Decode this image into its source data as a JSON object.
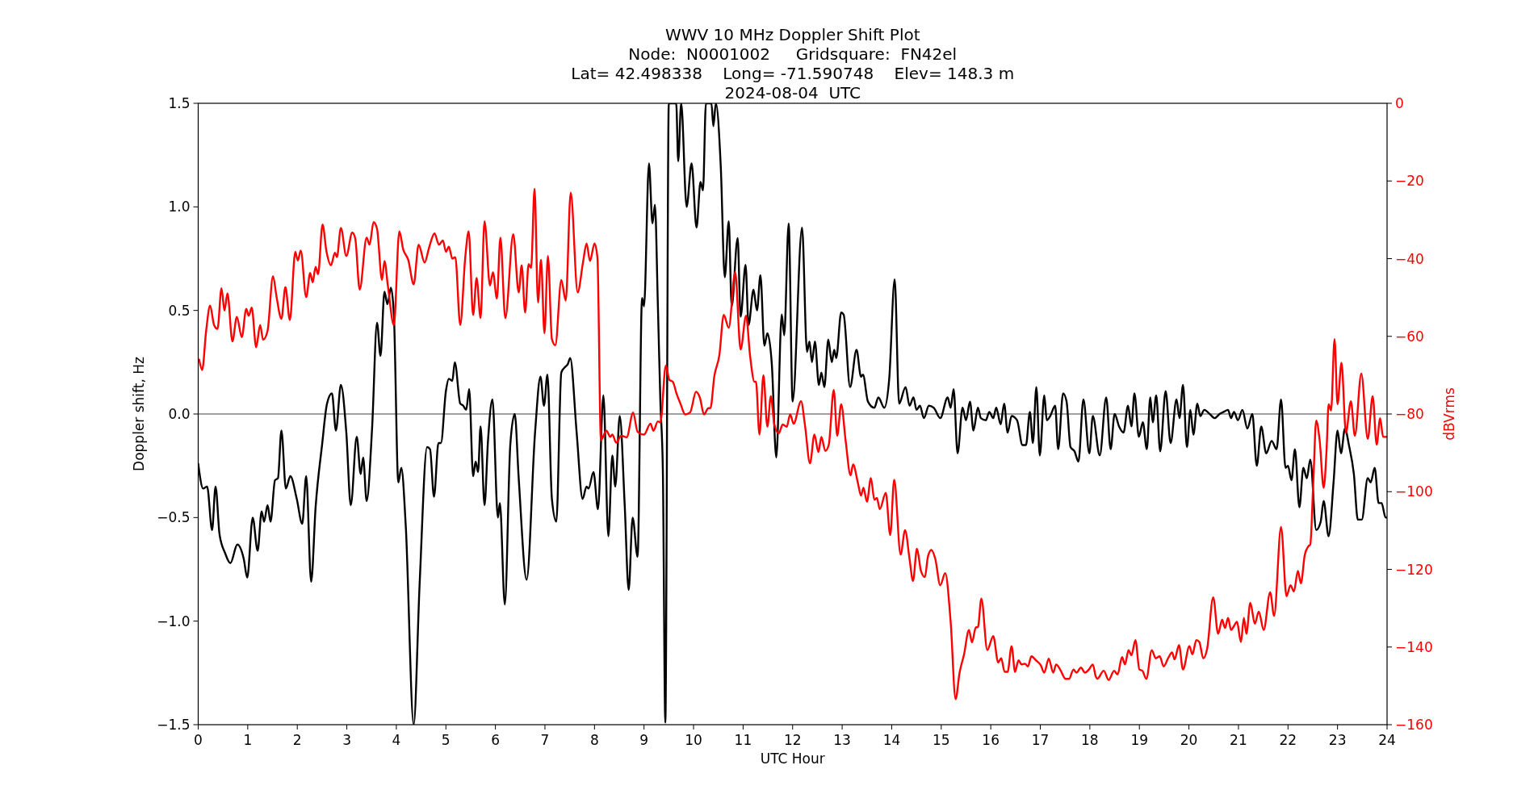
{
  "chart_data": {
    "type": "line",
    "title": "WWV 10 MHz Doppler Shift Plot",
    "subtitle": "Node:  N0001002     Gridsquare:  FN42el\nLat= 42.498338    Long= -71.590748    Elev= 148.3 m\n2024-08-04  UTC",
    "xlabel": "UTC Hour",
    "ylabel": "Doppler shift, Hz",
    "y2label": "dBVrms",
    "xlim": [
      0,
      24
    ],
    "xticks": [
      0,
      1,
      2,
      3,
      4,
      5,
      6,
      7,
      8,
      9,
      10,
      11,
      12,
      13,
      14,
      15,
      16,
      17,
      18,
      19,
      20,
      21,
      22,
      23,
      24
    ],
    "ylim": [
      -1.5,
      1.5
    ],
    "yticks": [
      {
        "value": -1.5,
        "label": "−1.5"
      },
      {
        "value": -1,
        "label": "−1.0"
      },
      {
        "value": -0.5,
        "label": "−0.5"
      },
      {
        "value": 0,
        "label": "0.0"
      },
      {
        "value": 0.5,
        "label": "0.5"
      },
      {
        "value": 1,
        "label": "1.0"
      },
      {
        "value": 1.5,
        "label": "1.5"
      }
    ],
    "y2lim": [
      -160,
      0
    ],
    "y2ticks": [
      {
        "value": -160,
        "label": "−160"
      },
      {
        "value": -140,
        "label": "−140"
      },
      {
        "value": -120,
        "label": "−120"
      },
      {
        "value": -100,
        "label": "−100"
      },
      {
        "value": -80,
        "label": "−80"
      },
      {
        "value": -60,
        "label": "−60"
      },
      {
        "value": -40,
        "label": "−40"
      },
      {
        "value": -20,
        "label": "−20"
      },
      0
    ],
    "grid": false,
    "ref_lines": [
      {
        "axis": "y",
        "value": 0,
        "color": "#808080"
      }
    ],
    "series": [
      {
        "color": "#000000",
        "x": [
          0,
          0.1,
          0.18,
          0.28,
          0.35,
          0.43,
          0.54,
          0.65,
          0.79,
          0.92,
          0.99,
          1.1,
          1.2,
          1.28,
          1.33,
          1.4,
          1.46,
          1.55,
          1.61,
          1.68,
          1.77,
          1.86,
          1.99,
          2.1,
          2.18,
          2.28,
          2.37,
          2.5,
          2.6,
          2.7,
          2.78,
          2.88,
          2.99,
          3.08,
          3.2,
          3.28,
          3.33,
          3.4,
          3.51,
          3.61,
          3.68,
          3.76,
          3.82,
          3.89,
          3.95,
          4.04,
          4.1,
          4.19,
          4.35,
          4.47,
          4.62,
          4.68,
          4.76,
          4.85,
          4.9,
          5,
          5.06,
          5.13,
          5.18,
          5.29,
          5.35,
          5.41,
          5.47,
          5.55,
          5.6,
          5.65,
          5.7,
          5.78,
          5.85,
          5.94,
          6.05,
          6.09,
          6.19,
          6.3,
          6.39,
          6.47,
          6.63,
          6.8,
          6.91,
          6.98,
          7.05,
          7.14,
          7.23,
          7.33,
          7.42,
          7.46,
          7.51,
          7.64,
          7.76,
          7.84,
          7.88,
          7.98,
          8.07,
          8.18,
          8.28,
          8.36,
          8.42,
          8.51,
          8.61,
          8.69,
          8.77,
          8.87,
          8.96,
          9,
          9.1,
          9.17,
          9.22,
          9.28,
          9.33,
          9.38,
          9.43,
          9.5,
          9.52,
          9.65,
          9.69,
          9.75,
          9.86,
          9.96,
          10.06,
          10.14,
          10.19,
          10.25,
          10.36,
          10.4,
          10.45,
          10.55,
          10.63,
          10.71,
          10.77,
          10.89,
          10.95,
          11.05,
          11.11,
          11.21,
          11.28,
          11.35,
          11.43,
          11.49,
          11.58,
          11.67,
          11.78,
          11.83,
          11.92,
          12,
          12.19,
          12.29,
          12.34,
          12.39,
          12.45,
          12.53,
          12.58,
          12.64,
          12.72,
          12.79,
          12.84,
          12.88,
          12.98,
          13.03,
          13.16,
          13.29,
          13.38,
          13.42,
          13.52,
          13.65,
          13.73,
          13.85,
          13.95,
          14.06,
          14.15,
          14.28,
          14.36,
          14.44,
          14.5,
          14.57,
          14.65,
          14.75,
          14.85,
          14.98,
          15.13,
          15.19,
          15.25,
          15.33,
          15.43,
          15.5,
          15.58,
          15.65,
          15.74,
          15.8,
          15.9,
          15.97,
          16.05,
          16.11,
          16.2,
          16.27,
          16.34,
          16.42,
          16.53,
          16.64,
          16.71,
          16.79,
          16.85,
          16.92,
          16.99,
          17.08,
          17.13,
          17.2,
          17.3,
          17.36,
          17.46,
          17.53,
          17.61,
          17.69,
          17.77,
          17.87,
          17.99,
          18.06,
          18.2,
          18.33,
          18.42,
          18.5,
          18.59,
          18.68,
          18.77,
          18.84,
          18.9,
          18.99,
          19.07,
          19.15,
          19.22,
          19.27,
          19.34,
          19.42,
          19.53,
          19.63,
          19.75,
          19.81,
          19.88,
          19.96,
          20.03,
          20.09,
          20.17,
          20.23,
          20.31,
          20.42,
          20.52,
          20.62,
          20.7,
          20.79,
          20.85,
          20.91,
          20.99,
          21.08,
          21.18,
          21.28,
          21.37,
          21.46,
          21.56,
          21.67,
          21.77,
          21.86,
          21.95,
          22,
          22.07,
          22.14,
          22.23,
          22.31,
          22.38,
          22.45,
          22.57,
          22.66,
          22.72,
          22.82,
          22.92,
          23,
          23.07,
          23.15,
          23.23,
          23.33,
          23.41,
          23.49,
          23.61,
          23.67,
          23.75,
          23.83,
          23.89,
          23.97,
          24
        ],
        "values": [
          -0.24,
          -0.36,
          -0.35,
          -0.56,
          -0.35,
          -0.58,
          -0.67,
          -0.72,
          -0.63,
          -0.7,
          -0.79,
          -0.5,
          -0.66,
          -0.47,
          -0.52,
          -0.44,
          -0.52,
          -0.32,
          -0.31,
          -0.08,
          -0.36,
          -0.3,
          -0.41,
          -0.53,
          -0.3,
          -0.81,
          -0.45,
          -0.15,
          0.05,
          0.1,
          -0.08,
          0.14,
          -0.09,
          -0.44,
          -0.11,
          -0.29,
          -0.21,
          -0.42,
          -0.07,
          0.44,
          0.28,
          0.59,
          0.53,
          0.61,
          0.48,
          -0.33,
          -0.26,
          -0.54,
          -1.5,
          -0.82,
          -0.16,
          -0.17,
          -0.4,
          -0.14,
          -0.14,
          0.11,
          0.17,
          0.16,
          0.25,
          0.05,
          0.04,
          0.02,
          0.12,
          -0.3,
          -0.23,
          -0.28,
          -0.06,
          -0.44,
          -0.13,
          0.07,
          -0.5,
          -0.43,
          -0.92,
          -0.15,
          0,
          -0.31,
          -0.8,
          -0.09,
          0.18,
          0.04,
          0.19,
          -0.41,
          -0.52,
          0.2,
          0.23,
          0.24,
          0.27,
          -0.09,
          -0.41,
          -0.35,
          -0.36,
          -0.28,
          -0.46,
          0.09,
          -0.59,
          -0.2,
          -0.35,
          -0.01,
          -0.44,
          -0.85,
          -0.5,
          -0.69,
          0.56,
          0.52,
          1.21,
          0.92,
          1.01,
          0.52,
          0.06,
          -0.27,
          -1.49,
          1.5,
          1.5,
          1.5,
          1.22,
          1.5,
          1,
          1.21,
          0.9,
          1.12,
          1.08,
          1.5,
          1.5,
          1.39,
          1.5,
          1.19,
          0.66,
          0.93,
          0.52,
          0.85,
          0.47,
          0.72,
          0.43,
          0.6,
          0.5,
          0.67,
          0.33,
          0.39,
          0.24,
          -0.21,
          0.48,
          0.38,
          0.92,
          0.06,
          0.9,
          0.3,
          0.35,
          0.25,
          0.35,
          0.14,
          0.2,
          0.13,
          0.36,
          0.25,
          0.31,
          0.27,
          0.49,
          0.48,
          0.13,
          0.31,
          0.18,
          0.19,
          0.06,
          0.03,
          0.08,
          0.03,
          0.17,
          0.65,
          0.05,
          0.13,
          0.04,
          0.08,
          0.02,
          0.04,
          -0.02,
          0.04,
          0.03,
          -0.02,
          0.08,
          0.03,
          0.12,
          -0.19,
          0.03,
          -0.03,
          0.06,
          -0.08,
          0.03,
          -0.02,
          -0.03,
          0.01,
          -0.02,
          0.03,
          -0.05,
          0.05,
          -0.09,
          -0.01,
          -0.03,
          -0.15,
          -0.15,
          0.01,
          -0.14,
          0.13,
          -0.2,
          0.09,
          -0.03,
          -0.01,
          0.04,
          -0.17,
          0.1,
          0.06,
          -0.16,
          -0.18,
          -0.23,
          0.07,
          -0.19,
          -0.01,
          -0.2,
          0.08,
          -0.17,
          0,
          -0.06,
          -0.09,
          0.04,
          -0.06,
          0.1,
          -0.11,
          -0.04,
          -0.17,
          0.08,
          -0.04,
          0.09,
          -0.18,
          0.11,
          -0.14,
          0.07,
          -0.02,
          0.14,
          -0.16,
          0.02,
          -0.1,
          0.05,
          -0.01,
          0.02,
          0,
          -0.02,
          0,
          0.01,
          0.02,
          -0.02,
          0.01,
          -0.03,
          0.02,
          -0.07,
          0,
          -0.25,
          -0.06,
          -0.19,
          -0.13,
          -0.17,
          0.07,
          -0.26,
          -0.25,
          -0.32,
          -0.17,
          -0.45,
          -0.26,
          -0.31,
          -0.22,
          -0.56,
          -0.52,
          -0.42,
          -0.59,
          -0.33,
          -0.08,
          -0.19,
          -0.07,
          -0.15,
          -0.29,
          -0.51,
          -0.51,
          -0.31,
          -0.33,
          -0.26,
          -0.43,
          -0.43,
          -0.5,
          -0.5
        ]
      },
      {
        "color": "#ff0000",
        "axis": "y2",
        "x": [
          0.02,
          0.08,
          0.16,
          0.24,
          0.32,
          0.39,
          0.47,
          0.53,
          0.59,
          0.69,
          0.78,
          0.88,
          0.97,
          1.02,
          1.08,
          1.17,
          1.25,
          1.31,
          1.4,
          1.51,
          1.58,
          1.68,
          1.76,
          1.85,
          1.96,
          2.01,
          2.07,
          2.18,
          2.26,
          2.31,
          2.37,
          2.42,
          2.51,
          2.59,
          2.68,
          2.76,
          2.8,
          2.88,
          2.99,
          3.11,
          3.17,
          3.26,
          3.4,
          3.46,
          3.54,
          3.61,
          3.71,
          3.76,
          3.83,
          3.95,
          4.06,
          4.14,
          4.24,
          4.35,
          4.45,
          4.57,
          4.66,
          4.77,
          4.86,
          4.94,
          5,
          5.06,
          5.13,
          5.19,
          5.29,
          5.39,
          5.46,
          5.55,
          5.62,
          5.7,
          5.78,
          5.89,
          5.95,
          6.03,
          6.1,
          6.2,
          6.36,
          6.47,
          6.53,
          6.6,
          6.67,
          6.72,
          6.79,
          6.86,
          6.92,
          6.99,
          7.06,
          7.14,
          7.21,
          7.33,
          7.42,
          7.52,
          7.66,
          7.77,
          7.84,
          7.91,
          8,
          8.06,
          8.13,
          8.24,
          8.32,
          8.36,
          8.44,
          8.54,
          8.65,
          8.78,
          8.87,
          9,
          9.13,
          9.19,
          9.28,
          9.33,
          9.44,
          9.51,
          9.58,
          9.66,
          9.74,
          9.83,
          9.93,
          10.05,
          10.13,
          10.21,
          10.3,
          10.34,
          10.42,
          10.52,
          10.61,
          10.71,
          10.84,
          10.95,
          11.06,
          11.14,
          11.23,
          11.26,
          11.33,
          11.41,
          11.49,
          11.56,
          11.63,
          11.72,
          11.8,
          11.88,
          11.95,
          12.02,
          12.17,
          12.25,
          12.35,
          12.44,
          12.52,
          12.58,
          12.66,
          12.73,
          12.83,
          12.9,
          12.98,
          13.07,
          13.17,
          13.22,
          13.32,
          13.38,
          13.43,
          13.5,
          13.58,
          13.65,
          13.7,
          13.76,
          13.88,
          13.97,
          14.05,
          14.18,
          14.27,
          14.36,
          14.43,
          14.51,
          14.59,
          14.67,
          14.73,
          14.8,
          14.88,
          14.98,
          15.08,
          15.19,
          15.29,
          15.37,
          15.46,
          15.56,
          15.62,
          15.7,
          15.74,
          15.81,
          15.93,
          16.05,
          16.15,
          16.21,
          16.28,
          16.34,
          16.42,
          16.49,
          16.56,
          16.62,
          16.69,
          16.75,
          16.82,
          16.91,
          17.01,
          17.08,
          17.17,
          17.26,
          17.32,
          17.4,
          17.51,
          17.58,
          17.67,
          17.73,
          17.82,
          17.9,
          17.98,
          18.06,
          18.12,
          18.15,
          18.28,
          18.38,
          18.49,
          18.56,
          18.65,
          18.71,
          18.78,
          18.84,
          18.92,
          19,
          19.06,
          19.14,
          19.25,
          19.33,
          19.41,
          19.49,
          19.58,
          19.66,
          19.71,
          19.8,
          19.88,
          20.01,
          20.07,
          20.15,
          20.21,
          20.29,
          20.37,
          20.49,
          20.59,
          20.67,
          20.73,
          20.79,
          20.85,
          20.91,
          20.97,
          21.05,
          21.11,
          21.16,
          21.24,
          21.33,
          21.41,
          21.51,
          21.64,
          21.72,
          21.86,
          21.97,
          22.05,
          22.12,
          22.2,
          22.26,
          22.34,
          22.41,
          22.45,
          22.51,
          22.57,
          22.64,
          22.72,
          22.78,
          22.82,
          22.87,
          22.94,
          23,
          23.08,
          23.17,
          23.27,
          23.35,
          23.48,
          23.61,
          23.71,
          23.79,
          23.86,
          23.92,
          24
        ],
        "values": [
          -66,
          -68.7,
          -58.6,
          -52.1,
          -57.1,
          -58.1,
          -47.6,
          -53.4,
          -48.9,
          -61.3,
          -55,
          -60.2,
          -52.9,
          -54.7,
          -52.6,
          -62.8,
          -57.1,
          -60.9,
          -58.6,
          -44.5,
          -49.7,
          -55.5,
          -47.3,
          -55.8,
          -38.2,
          -40.5,
          -37.9,
          -49.9,
          -43.7,
          -46.1,
          -42.1,
          -44,
          -31.2,
          -38.2,
          -41.7,
          -38.5,
          -39.6,
          -32.1,
          -39.3,
          -33.3,
          -34.8,
          -48,
          -34.6,
          -36.4,
          -30.6,
          -32.3,
          -45.5,
          -40.6,
          -47.1,
          -57.1,
          -33,
          -37.7,
          -40.3,
          -46.6,
          -36.4,
          -41,
          -37.2,
          -33.5,
          -36.4,
          -35.3,
          -38.2,
          -36.9,
          -40,
          -39.6,
          -57.1,
          -39.8,
          -33,
          -54.5,
          -45,
          -55.3,
          -30.4,
          -46.9,
          -43.5,
          -50.3,
          -34.6,
          -55.3,
          -33.7,
          -48.7,
          -41.7,
          -53.9,
          -41.4,
          -42.4,
          -22,
          -51.3,
          -40.3,
          -59.2,
          -39.3,
          -60.7,
          -62.3,
          -45.5,
          -50.8,
          -23,
          -48.7,
          -40.8,
          -36.1,
          -40.6,
          -36.1,
          -39.8,
          -86.7,
          -84.3,
          -85.9,
          -85.3,
          -87.4,
          -85.6,
          -86,
          -79.6,
          -84.6,
          -85.3,
          -82.5,
          -84.3,
          -81.9,
          -82.2,
          -67.5,
          -71.2,
          -71.7,
          -74.9,
          -77.5,
          -80.1,
          -79.6,
          -74.3,
          -75.9,
          -80.1,
          -78.5,
          -78.5,
          -70.2,
          -64.9,
          -54.5,
          -57.8,
          -43.5,
          -63.4,
          -54.7,
          -64.9,
          -71.7,
          -71.7,
          -85.3,
          -70,
          -83.3,
          -75.4,
          -82.7,
          -85,
          -82.7,
          -83.3,
          -80.1,
          -82.5,
          -76.7,
          -83,
          -92.7,
          -85.3,
          -89.8,
          -85.9,
          -89.5,
          -87.9,
          -73.8,
          -85.6,
          -77.5,
          -86.9,
          -95.8,
          -93,
          -97.9,
          -101,
          -99,
          -102.6,
          -96.5,
          -102.1,
          -101.6,
          -104.5,
          -100.3,
          -111.2,
          -96.9,
          -116.2,
          -109.9,
          -117.3,
          -123,
          -114.7,
          -120.4,
          -122,
          -116.8,
          -115,
          -117.3,
          -124.1,
          -121,
          -133.5,
          -153.4,
          -146.6,
          -141.9,
          -135.6,
          -138.8,
          -134.9,
          -134.9,
          -127.5,
          -140.8,
          -137.2,
          -144,
          -142.9,
          -146.4,
          -146.4,
          -139.8,
          -146.4,
          -143.4,
          -144.5,
          -144.3,
          -145,
          -142.4,
          -143.4,
          -144.7,
          -146.6,
          -143,
          -146.6,
          -144.5,
          -145.8,
          -148.2,
          -148.2,
          -145.8,
          -146.6,
          -145.3,
          -146.6,
          -145.8,
          -144.5,
          -147.6,
          -148.2,
          -146.1,
          -148.5,
          -146.1,
          -147.1,
          -142.6,
          -144.5,
          -140.8,
          -142.1,
          -138.2,
          -145.8,
          -146.1,
          -148.2,
          -140.8,
          -142.9,
          -142.4,
          -145,
          -142.9,
          -141.4,
          -143.2,
          -139.5,
          -145.8,
          -139.8,
          -141.9,
          -138.2,
          -138.7,
          -142.9,
          -140.3,
          -127.2,
          -136.6,
          -133,
          -135.1,
          -132.5,
          -135.6,
          -134.6,
          -133.5,
          -138.7,
          -132.5,
          -136.6,
          -128.6,
          -134,
          -130.9,
          -135.6,
          -125.9,
          -132,
          -109.1,
          -126.9,
          -124.1,
          -125.7,
          -120.4,
          -123.6,
          -116.2,
          -114.1,
          -113.6,
          -97.9,
          -81.7,
          -86.9,
          -99,
          -89,
          -77.5,
          -79.1,
          -60.7,
          -77.5,
          -66.8,
          -84.8,
          -76.7,
          -85.6,
          -69.6,
          -86.4,
          -75.4,
          -87.9,
          -81.1,
          -85.9,
          -85.9
        ]
      }
    ]
  }
}
